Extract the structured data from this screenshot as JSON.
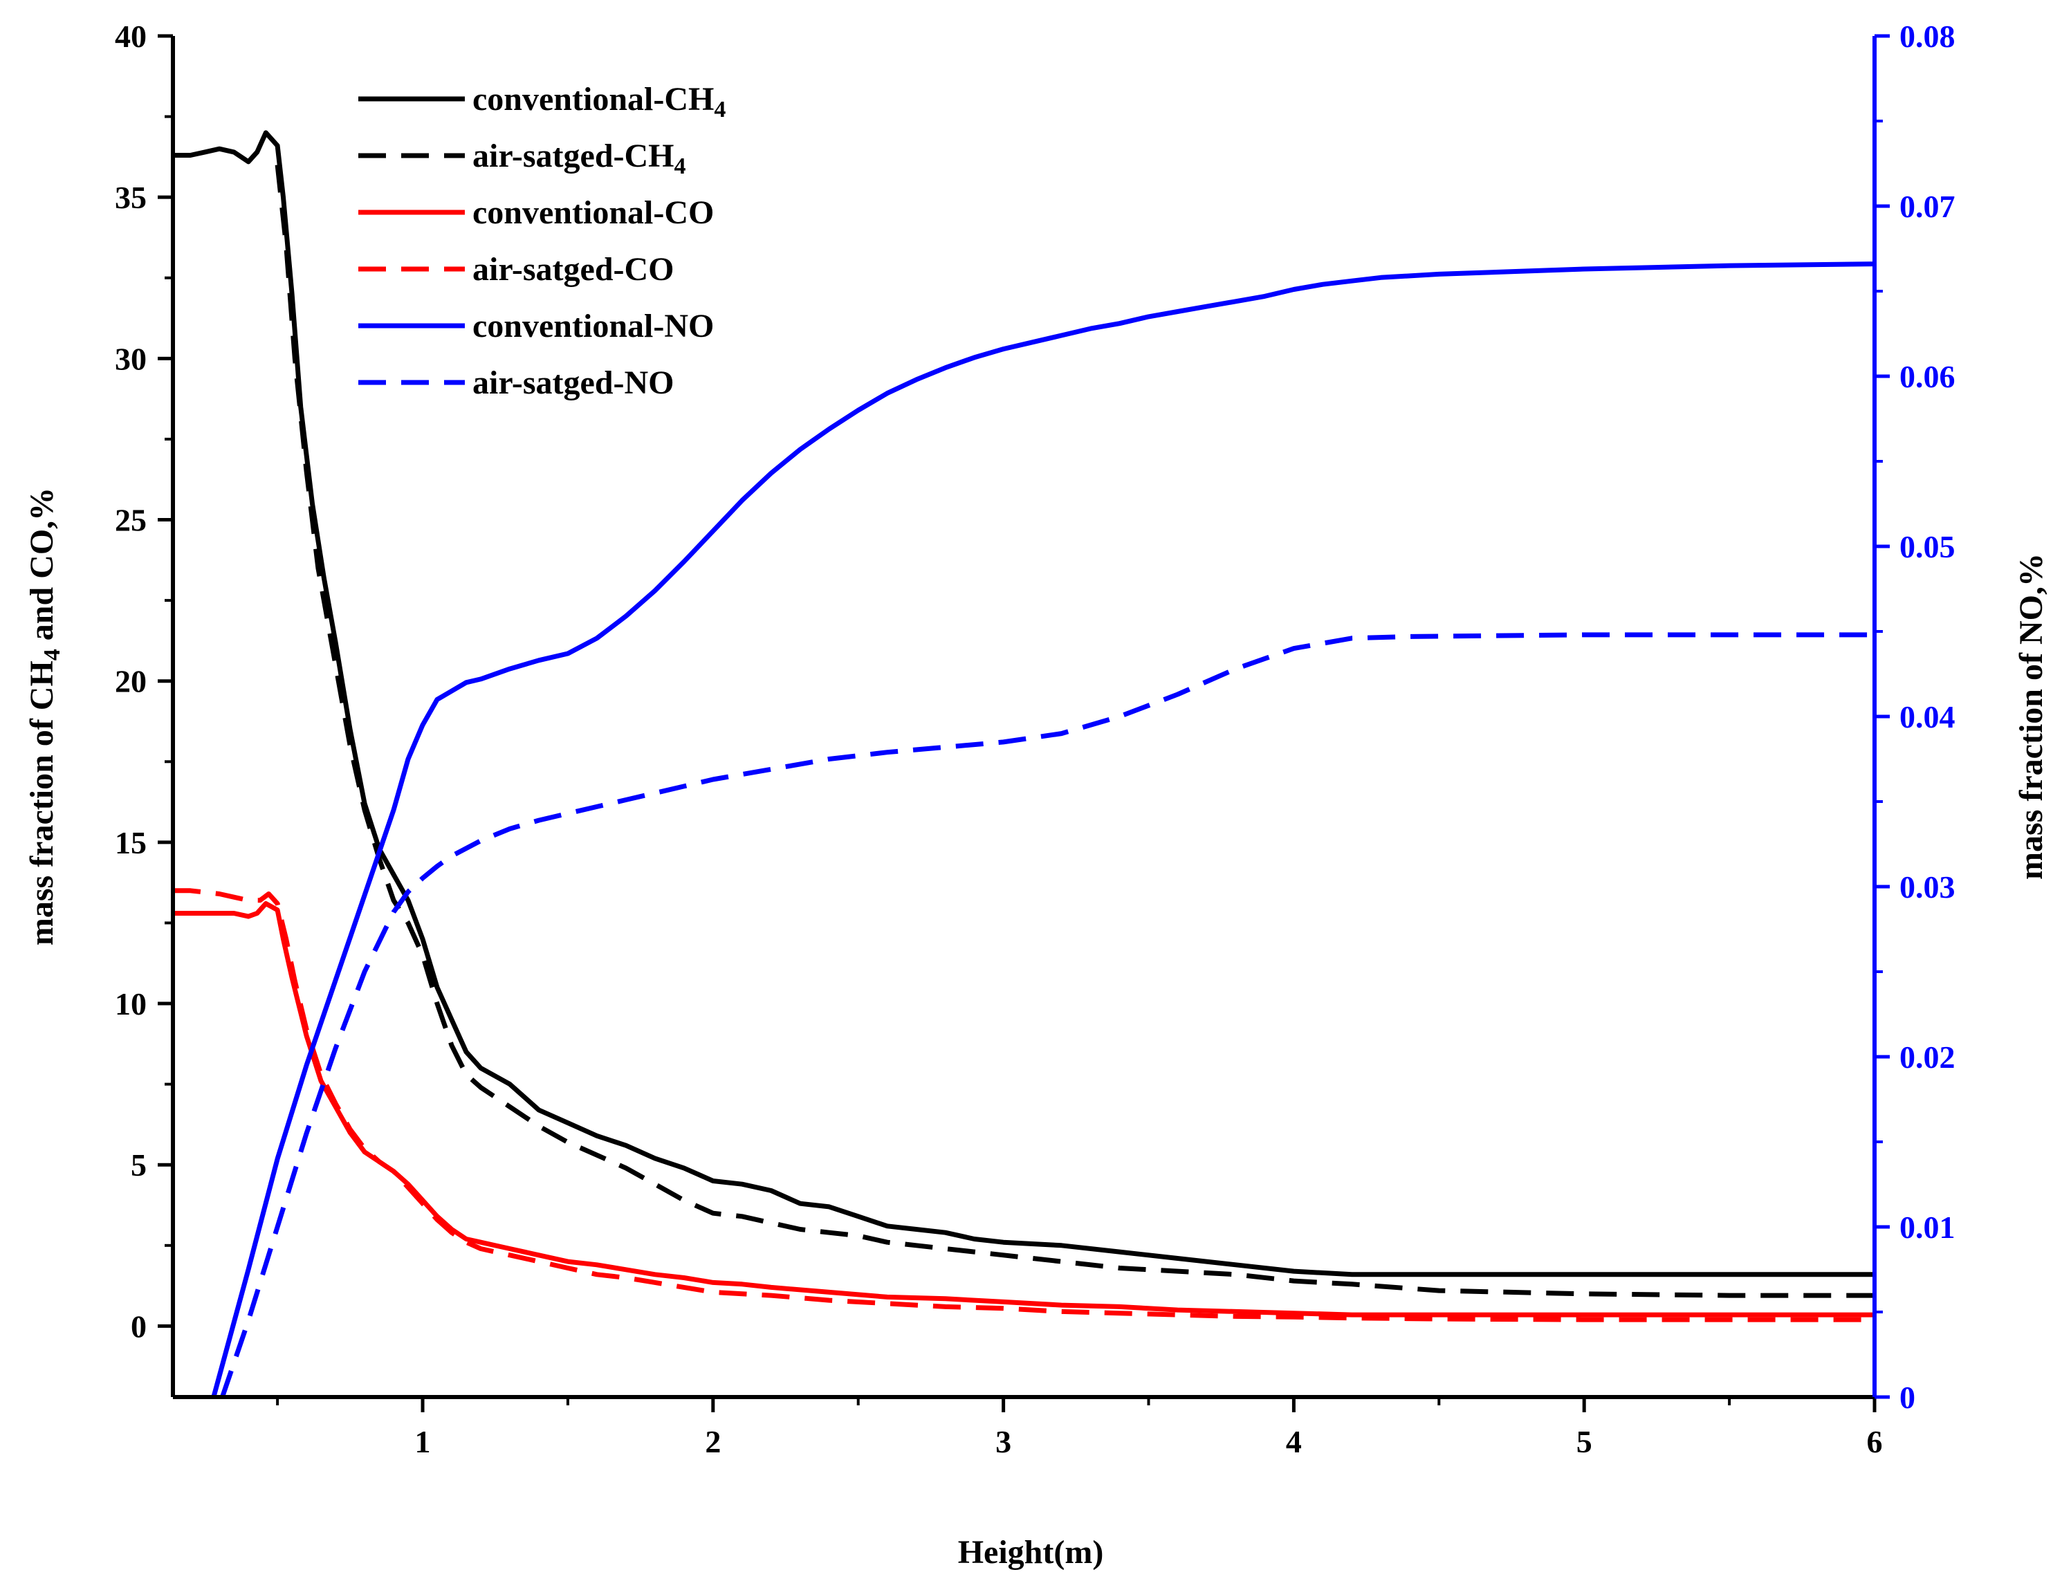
{
  "chart_data": {
    "type": "line",
    "xlabel": "Height(m)",
    "ylabel_left": {
      "prefix": "mass fraction of CH",
      "sub": "4",
      "suffix": " and CO,%"
    },
    "ylabel_right": "mass fraction of NO,%",
    "xlim": [
      0.14,
      6.0
    ],
    "ylim_left": [
      -2.2,
      40
    ],
    "ylim_right": [
      0,
      0.08
    ],
    "x_ticks": [
      {
        "value": 1,
        "label": "1"
      },
      {
        "value": 2,
        "label": "2"
      },
      {
        "value": 3,
        "label": "3"
      },
      {
        "value": 4,
        "label": "4"
      },
      {
        "value": 5,
        "label": "5"
      },
      {
        "value": 6,
        "label": "6"
      }
    ],
    "y_left_ticks": [
      {
        "value": 0,
        "label": "0"
      },
      {
        "value": 5,
        "label": "5"
      },
      {
        "value": 10,
        "label": "10"
      },
      {
        "value": 15,
        "label": "15"
      },
      {
        "value": 20,
        "label": "20"
      },
      {
        "value": 25,
        "label": "25"
      },
      {
        "value": 30,
        "label": "30"
      },
      {
        "value": 35,
        "label": "35"
      },
      {
        "value": 40,
        "label": "40"
      }
    ],
    "y_right_ticks": [
      {
        "value": 0,
        "label": "0"
      },
      {
        "value": 0.01,
        "label": "0.01"
      },
      {
        "value": 0.02,
        "label": "0.02"
      },
      {
        "value": 0.03,
        "label": "0.03"
      },
      {
        "value": 0.04,
        "label": "0.04"
      },
      {
        "value": 0.05,
        "label": "0.05"
      },
      {
        "value": 0.06,
        "label": "0.06"
      },
      {
        "value": 0.07,
        "label": "0.07"
      },
      {
        "value": 0.08,
        "label": "0.08"
      }
    ],
    "colors": {
      "black": "#000000",
      "red": "#ff0000",
      "blue": "#0000ff"
    },
    "legend_position": "top-left",
    "series": [
      {
        "name": "conventional-CH4",
        "label_main": "conventional-CH",
        "label_sub": "4",
        "color": "#000000",
        "dashed": false,
        "axis": "left",
        "x": [
          0.14,
          0.2,
          0.25,
          0.3,
          0.35,
          0.4,
          0.43,
          0.46,
          0.48,
          0.5,
          0.52,
          0.55,
          0.58,
          0.62,
          0.66,
          0.7,
          0.75,
          0.8,
          0.85,
          0.9,
          0.95,
          1.0,
          1.05,
          1.1,
          1.15,
          1.2,
          1.3,
          1.4,
          1.5,
          1.6,
          1.7,
          1.8,
          1.9,
          2.0,
          2.1,
          2.2,
          2.3,
          2.4,
          2.5,
          2.6,
          2.7,
          2.8,
          2.9,
          3.0,
          3.2,
          3.4,
          3.6,
          3.8,
          4.0,
          4.2,
          4.5,
          5.0,
          5.5,
          6.0
        ],
        "y": [
          36.3,
          36.3,
          36.4,
          36.5,
          36.4,
          36.1,
          36.4,
          37.0,
          36.8,
          36.6,
          35.0,
          32.0,
          28.5,
          25.5,
          23.2,
          21.2,
          18.5,
          16.2,
          14.8,
          14.0,
          13.2,
          12.0,
          10.5,
          9.5,
          8.5,
          8.0,
          7.5,
          6.7,
          6.3,
          5.9,
          5.6,
          5.2,
          4.9,
          4.5,
          4.4,
          4.2,
          3.8,
          3.7,
          3.4,
          3.1,
          3.0,
          2.9,
          2.7,
          2.6,
          2.5,
          2.3,
          2.1,
          1.9,
          1.7,
          1.6,
          1.6,
          1.6,
          1.6,
          1.6
        ]
      },
      {
        "name": "air-satged-CH4",
        "label_main": "air-satged-CH",
        "label_sub": "4",
        "color": "#000000",
        "dashed": true,
        "axis": "left",
        "x": [
          0.5,
          0.53,
          0.56,
          0.6,
          0.64,
          0.7,
          0.75,
          0.8,
          0.85,
          0.9,
          0.95,
          1.0,
          1.05,
          1.1,
          1.15,
          1.2,
          1.3,
          1.4,
          1.5,
          1.6,
          1.7,
          1.8,
          1.9,
          2.0,
          2.1,
          2.2,
          2.3,
          2.4,
          2.5,
          2.6,
          2.7,
          2.8,
          2.9,
          3.0,
          3.2,
          3.4,
          3.6,
          3.8,
          4.0,
          4.2,
          4.5,
          5.0,
          5.5,
          6.0
        ],
        "y": [
          36.0,
          33.5,
          30.0,
          26.5,
          23.5,
          20.5,
          18.0,
          16.0,
          14.5,
          13.2,
          12.5,
          11.5,
          10.0,
          8.7,
          7.8,
          7.4,
          6.8,
          6.2,
          5.7,
          5.3,
          4.9,
          4.4,
          3.9,
          3.5,
          3.4,
          3.2,
          3.0,
          2.9,
          2.8,
          2.6,
          2.5,
          2.4,
          2.3,
          2.2,
          2.0,
          1.8,
          1.7,
          1.6,
          1.4,
          1.3,
          1.1,
          1.0,
          0.95,
          0.95
        ]
      },
      {
        "name": "conventional-CO",
        "label_main": "conventional-CO",
        "label_sub": "",
        "color": "#ff0000",
        "dashed": false,
        "axis": "left",
        "x": [
          0.14,
          0.2,
          0.3,
          0.35,
          0.4,
          0.43,
          0.46,
          0.48,
          0.5,
          0.52,
          0.55,
          0.6,
          0.65,
          0.7,
          0.75,
          0.8,
          0.85,
          0.9,
          0.95,
          1.0,
          1.05,
          1.1,
          1.15,
          1.2,
          1.3,
          1.4,
          1.5,
          1.6,
          1.7,
          1.8,
          1.9,
          2.0,
          2.1,
          2.2,
          2.4,
          2.6,
          2.8,
          3.0,
          3.2,
          3.4,
          3.6,
          3.8,
          4.0,
          4.2,
          4.5,
          5.0,
          5.5,
          6.0
        ],
        "y": [
          12.8,
          12.8,
          12.8,
          12.8,
          12.7,
          12.8,
          13.1,
          13.0,
          12.9,
          12.0,
          10.8,
          9.0,
          7.6,
          6.8,
          6.0,
          5.4,
          5.1,
          4.8,
          4.4,
          3.9,
          3.4,
          3.0,
          2.7,
          2.6,
          2.4,
          2.2,
          2.0,
          1.9,
          1.75,
          1.6,
          1.5,
          1.35,
          1.3,
          1.2,
          1.05,
          0.9,
          0.85,
          0.75,
          0.65,
          0.6,
          0.5,
          0.45,
          0.4,
          0.35,
          0.35,
          0.35,
          0.35,
          0.35
        ]
      },
      {
        "name": "air-satged-CO",
        "label_main": "air-satged-CO",
        "label_sub": "",
        "color": "#ff0000",
        "dashed": true,
        "axis": "left",
        "x": [
          0.14,
          0.2,
          0.3,
          0.35,
          0.4,
          0.44,
          0.47,
          0.5,
          0.53,
          0.56,
          0.6,
          0.65,
          0.7,
          0.75,
          0.8,
          0.85,
          0.9,
          0.95,
          1.0,
          1.05,
          1.1,
          1.15,
          1.2,
          1.3,
          1.4,
          1.5,
          1.6,
          1.7,
          1.8,
          1.9,
          2.0,
          2.2,
          2.4,
          2.6,
          2.8,
          3.0,
          3.2,
          3.4,
          3.6,
          3.8,
          4.0,
          4.2,
          4.5,
          5.0,
          5.5,
          6.0
        ],
        "y": [
          13.5,
          13.5,
          13.4,
          13.3,
          13.2,
          13.2,
          13.4,
          13.1,
          12.0,
          10.7,
          9.2,
          7.8,
          6.9,
          6.1,
          5.5,
          5.1,
          4.8,
          4.3,
          3.8,
          3.3,
          2.9,
          2.6,
          2.4,
          2.2,
          2.0,
          1.8,
          1.6,
          1.5,
          1.35,
          1.2,
          1.05,
          0.95,
          0.8,
          0.7,
          0.6,
          0.55,
          0.45,
          0.4,
          0.35,
          0.3,
          0.28,
          0.25,
          0.22,
          0.2,
          0.2,
          0.2
        ]
      },
      {
        "name": "conventional-NO",
        "label_main": "conventional-NO",
        "label_sub": "",
        "color": "#0000ff",
        "dashed": false,
        "axis": "right",
        "x": [
          0.28,
          0.4,
          0.5,
          0.6,
          0.7,
          0.8,
          0.9,
          0.95,
          1.0,
          1.05,
          1.1,
          1.15,
          1.2,
          1.3,
          1.4,
          1.5,
          1.6,
          1.7,
          1.8,
          1.9,
          2.0,
          2.1,
          2.2,
          2.3,
          2.4,
          2.5,
          2.6,
          2.7,
          2.8,
          2.9,
          3.0,
          3.1,
          3.2,
          3.3,
          3.4,
          3.5,
          3.6,
          3.7,
          3.8,
          3.9,
          4.0,
          4.1,
          4.2,
          4.3,
          4.5,
          5.0,
          5.5,
          6.0
        ],
        "y": [
          0.0,
          0.0075,
          0.014,
          0.0195,
          0.0245,
          0.0295,
          0.0345,
          0.0375,
          0.0395,
          0.041,
          0.0415,
          0.042,
          0.0422,
          0.0428,
          0.0433,
          0.0437,
          0.0446,
          0.0459,
          0.0474,
          0.0491,
          0.0509,
          0.0527,
          0.0543,
          0.0557,
          0.0569,
          0.058,
          0.059,
          0.0598,
          0.0605,
          0.0611,
          0.0616,
          0.062,
          0.0624,
          0.0628,
          0.0631,
          0.0635,
          0.0638,
          0.0641,
          0.0644,
          0.0647,
          0.0651,
          0.0654,
          0.0656,
          0.0658,
          0.066,
          0.0663,
          0.0665,
          0.0666
        ]
      },
      {
        "name": "air-satged-NO",
        "label_main": "air-satged-NO",
        "label_sub": "",
        "color": "#0000ff",
        "dashed": true,
        "axis": "right",
        "x": [
          0.31,
          0.4,
          0.5,
          0.6,
          0.7,
          0.8,
          0.9,
          0.95,
          1.0,
          1.05,
          1.1,
          1.2,
          1.3,
          1.4,
          1.5,
          1.6,
          1.7,
          1.8,
          1.9,
          2.0,
          2.2,
          2.4,
          2.6,
          2.8,
          3.0,
          3.2,
          3.4,
          3.6,
          3.8,
          4.0,
          4.2,
          4.4,
          5.0,
          5.5,
          6.0
        ],
        "y": [
          0.0,
          0.0045,
          0.01,
          0.0155,
          0.0205,
          0.025,
          0.0285,
          0.0297,
          0.0305,
          0.0312,
          0.0318,
          0.0327,
          0.0334,
          0.0339,
          0.0343,
          0.0347,
          0.0351,
          0.0355,
          0.0359,
          0.0363,
          0.0369,
          0.0375,
          0.0379,
          0.0382,
          0.0385,
          0.039,
          0.04,
          0.0413,
          0.0428,
          0.044,
          0.0446,
          0.0447,
          0.0448,
          0.0448,
          0.0448
        ]
      }
    ]
  }
}
